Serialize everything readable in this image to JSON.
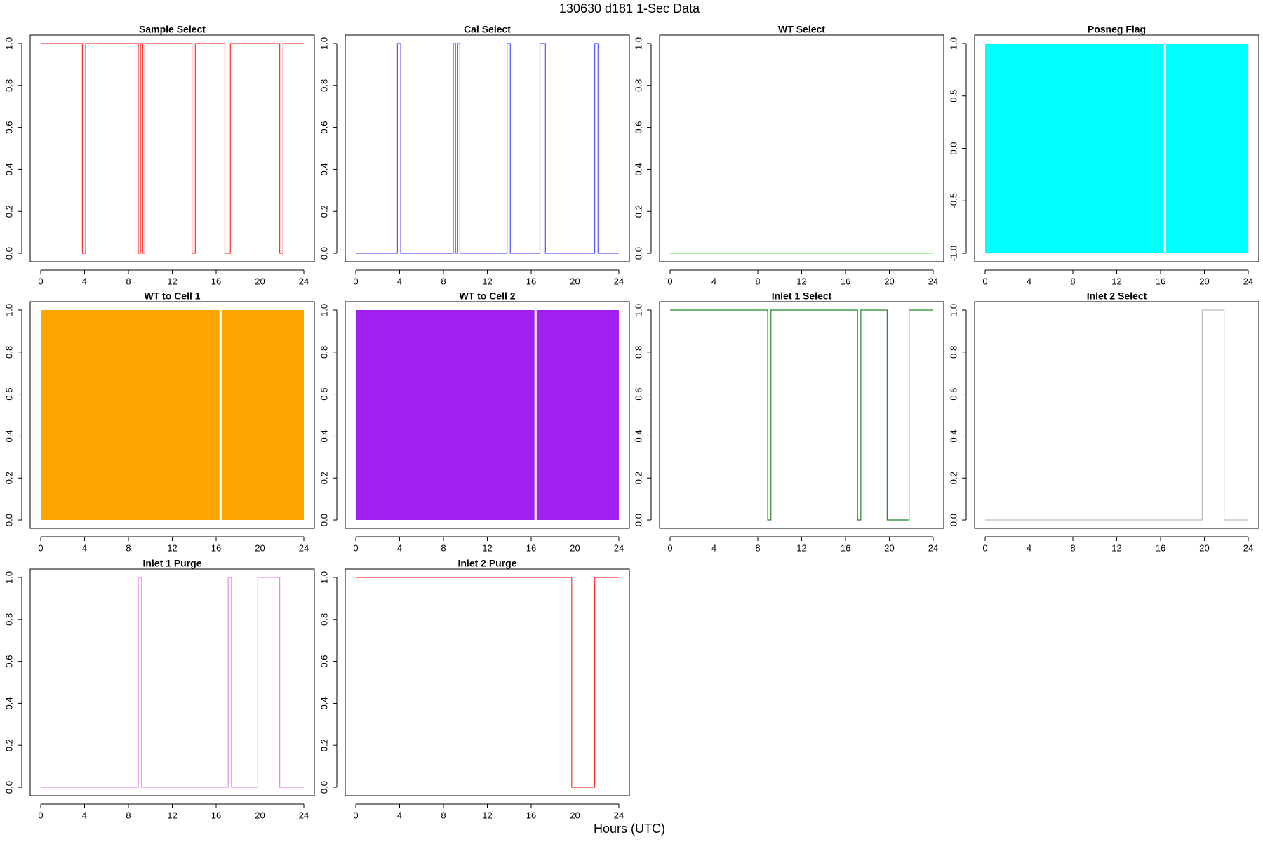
{
  "title": "130630   d181   1-Sec Data",
  "xlabel": "Hours (UTC)",
  "chart_data": [
    {
      "type": "step",
      "title": "Sample Select",
      "color": "#ff3030",
      "x": [
        0,
        3.8,
        4.1,
        8.9,
        9.1,
        9.3,
        9.5,
        13.8,
        14.1,
        16.8,
        17.3,
        21.8,
        22.1,
        24
      ],
      "values": [
        1,
        0,
        1,
        0,
        1,
        0,
        1,
        0,
        1,
        0,
        1,
        0,
        1,
        1
      ],
      "xlim": [
        -0.96,
        24.96
      ],
      "xticks": [
        0,
        4,
        8,
        12,
        16,
        20,
        24
      ],
      "ylim": [
        -0.04,
        1.04
      ],
      "yticks": [
        {
          "value": 0,
          "label": "0.0"
        },
        0.2,
        0.4,
        0.6,
        0.8,
        {
          "value": 1,
          "label": "1.0"
        }
      ]
    },
    {
      "type": "step",
      "title": "Cal Select",
      "color": "#5555ff",
      "x": [
        0,
        3.8,
        4.1,
        8.9,
        9.1,
        9.3,
        9.5,
        13.8,
        14.1,
        16.8,
        17.3,
        21.8,
        22.1,
        24
      ],
      "values": [
        0,
        1,
        0,
        1,
        0,
        1,
        0,
        1,
        0,
        1,
        0,
        1,
        0,
        0
      ],
      "xlim": [
        -0.96,
        24.96
      ],
      "xticks": [
        0,
        4,
        8,
        12,
        16,
        20,
        24
      ],
      "ylim": [
        -0.04,
        1.04
      ],
      "yticks": [
        {
          "value": 0,
          "label": "0.0"
        },
        0.2,
        0.4,
        0.6,
        0.8,
        {
          "value": 1,
          "label": "1.0"
        }
      ]
    },
    {
      "type": "step",
      "title": "WT Select",
      "color": "#66ee66",
      "x": [
        0,
        24
      ],
      "values": [
        0,
        0
      ],
      "xlim": [
        -0.96,
        24.96
      ],
      "xticks": [
        0,
        4,
        8,
        12,
        16,
        20,
        24
      ],
      "ylim": [
        -0.04,
        1.04
      ],
      "yticks": [
        {
          "value": 0,
          "label": "0.0"
        },
        0.2,
        0.4,
        0.6,
        0.8,
        {
          "value": 1,
          "label": "1.0"
        }
      ]
    },
    {
      "type": "band",
      "title": "Posneg Flag",
      "color": "#00ffff",
      "x": [
        0,
        16.3,
        16.4,
        16.5,
        24
      ],
      "high": [
        1,
        1,
        null,
        1,
        1
      ],
      "low": [
        -1,
        -1,
        null,
        -1,
        -1
      ],
      "xlim": [
        -0.96,
        24.96
      ],
      "xticks": [
        0,
        4,
        8,
        12,
        16,
        20,
        24
      ],
      "ylim": [
        -1.08,
        1.08
      ],
      "yticks": [
        {
          "value": -1,
          "label": "-1.0"
        },
        {
          "value": -0.5,
          "label": "-0.5"
        },
        {
          "value": 0,
          "label": "0.0"
        },
        0.5,
        {
          "value": 1,
          "label": "1.0"
        }
      ]
    },
    {
      "type": "band",
      "title": "WT to Cell 1",
      "color": "#ffa500",
      "x": [
        0,
        16.3,
        16.4,
        16.5,
        24
      ],
      "high": [
        1,
        1,
        null,
        1,
        1
      ],
      "low": [
        0,
        0,
        null,
        0,
        0
      ],
      "xlim": [
        -0.96,
        24.96
      ],
      "xticks": [
        0,
        4,
        8,
        12,
        16,
        20,
        24
      ],
      "ylim": [
        -0.04,
        1.04
      ],
      "yticks": [
        {
          "value": 0,
          "label": "0.0"
        },
        0.2,
        0.4,
        0.6,
        0.8,
        {
          "value": 1,
          "label": "1.0"
        }
      ]
    },
    {
      "type": "band",
      "title": "WT to Cell 2",
      "color": "#a020f0",
      "x": [
        0,
        16.3,
        16.4,
        16.5,
        24
      ],
      "high": [
        1,
        1,
        null,
        1,
        1
      ],
      "low": [
        0,
        0,
        null,
        0,
        0
      ],
      "xlim": [
        -0.96,
        24.96
      ],
      "xticks": [
        0,
        4,
        8,
        12,
        16,
        20,
        24
      ],
      "ylim": [
        -0.04,
        1.04
      ],
      "yticks": [
        {
          "value": 0,
          "label": "0.0"
        },
        0.2,
        0.4,
        0.6,
        0.8,
        {
          "value": 1,
          "label": "1.0"
        }
      ]
    },
    {
      "type": "step",
      "title": "Inlet 1 Select",
      "color": "#228b22",
      "x": [
        0,
        8.9,
        9.2,
        17.1,
        17.4,
        19.8,
        21.8,
        24
      ],
      "values": [
        1,
        0,
        1,
        0,
        1,
        0,
        1,
        1
      ],
      "xlim": [
        -0.96,
        24.96
      ],
      "xticks": [
        0,
        4,
        8,
        12,
        16,
        20,
        24
      ],
      "ylim": [
        -0.04,
        1.04
      ],
      "yticks": [
        {
          "value": 0,
          "label": "0.0"
        },
        0.2,
        0.4,
        0.6,
        0.8,
        {
          "value": 1,
          "label": "1.0"
        }
      ]
    },
    {
      "type": "step",
      "title": "Inlet 2 Select",
      "color": "#bebebe",
      "x": [
        0,
        19.8,
        21.8,
        24
      ],
      "values": [
        0,
        1,
        0,
        0
      ],
      "xlim": [
        -0.96,
        24.96
      ],
      "xticks": [
        0,
        4,
        8,
        12,
        16,
        20,
        24
      ],
      "ylim": [
        -0.04,
        1.04
      ],
      "yticks": [
        {
          "value": 0,
          "label": "0.0"
        },
        0.2,
        0.4,
        0.6,
        0.8,
        {
          "value": 1,
          "label": "1.0"
        }
      ]
    },
    {
      "type": "step",
      "title": "Inlet 1 Purge",
      "color": "#ee82ee",
      "x": [
        0,
        8.9,
        9.2,
        17.1,
        17.4,
        19.8,
        21.8,
        24
      ],
      "values": [
        0,
        1,
        0,
        1,
        0,
        1,
        0,
        0
      ],
      "xlim": [
        -0.96,
        24.96
      ],
      "xticks": [
        0,
        4,
        8,
        12,
        16,
        20,
        24
      ],
      "ylim": [
        -0.04,
        1.04
      ],
      "yticks": [
        {
          "value": 0,
          "label": "0.0"
        },
        0.2,
        0.4,
        0.6,
        0.8,
        {
          "value": 1,
          "label": "1.0"
        }
      ]
    },
    {
      "type": "step",
      "title": "Inlet 2 Purge",
      "color": "#ff3030",
      "x": [
        0,
        19.7,
        21.8,
        24
      ],
      "values": [
        1,
        0,
        1,
        1
      ],
      "xlim": [
        -0.96,
        24.96
      ],
      "xticks": [
        0,
        4,
        8,
        12,
        16,
        20,
        24
      ],
      "ylim": [
        -0.04,
        1.04
      ],
      "yticks": [
        {
          "value": 0,
          "label": "0.0"
        },
        0.2,
        0.4,
        0.6,
        0.8,
        {
          "value": 1,
          "label": "1.0"
        }
      ]
    }
  ]
}
